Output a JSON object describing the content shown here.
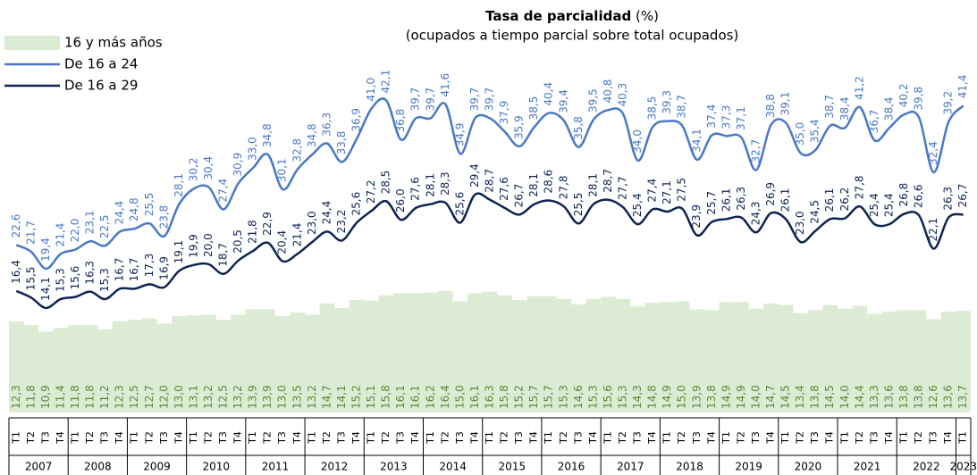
{
  "chart_data": {
    "type": "bar-line",
    "title": "Tasa de parcialidad",
    "title_unit": "(%)",
    "subtitle": "(ocupados a tiempo parcial sobre total ocupados)",
    "categories": [
      "T1",
      "T2",
      "T3",
      "T4",
      "T1",
      "T2",
      "T3",
      "T4",
      "T1",
      "T2",
      "T3",
      "T4",
      "T1",
      "T2",
      "T3",
      "T4",
      "T1",
      "T2",
      "T3",
      "T4",
      "T1",
      "T2",
      "T3",
      "T4",
      "T1",
      "T2",
      "T3",
      "T4",
      "T1",
      "T2",
      "T3",
      "T4",
      "T1",
      "T2",
      "T3",
      "T4",
      "T1",
      "T2",
      "T3",
      "T4",
      "T1",
      "T2",
      "T3",
      "T4",
      "T1",
      "T2",
      "T3",
      "T4",
      "T1",
      "T2",
      "T3",
      "T4",
      "T1",
      "T2",
      "T3",
      "T4",
      "T1",
      "T2",
      "T3",
      "T4",
      "T1",
      "T2",
      "T3",
      "T4",
      "T1"
    ],
    "years": [
      "2007",
      "2008",
      "2009",
      "2010",
      "2011",
      "2012",
      "2013",
      "2014",
      "2015",
      "2016",
      "2017",
      "2018",
      "2019",
      "2020",
      "2021",
      "2022",
      "2023"
    ],
    "ylim": [
      0,
      43
    ],
    "series": [
      {
        "name": "16 y más años",
        "kind": "bar",
        "color": "#dcebd3",
        "values": [
          12.3,
          11.8,
          10.9,
          11.4,
          11.8,
          11.8,
          11.2,
          12.3,
          12.5,
          12.7,
          12.0,
          13.0,
          13.1,
          13.2,
          12.5,
          13.2,
          13.9,
          13.9,
          13.0,
          13.5,
          13.2,
          14.7,
          14.1,
          15.2,
          15.1,
          15.8,
          16.1,
          16.1,
          16.2,
          16.4,
          15.0,
          16.1,
          16.3,
          15.8,
          15.2,
          15.7,
          15.7,
          15.3,
          14.6,
          15.3,
          15.6,
          15.3,
          14.3,
          14.8,
          14.9,
          15.0,
          13.9,
          13.8,
          14.9,
          14.9,
          14.0,
          14.7,
          14.5,
          13.4,
          13.8,
          14.5,
          14.0,
          14.4,
          13.3,
          13.6,
          13.8,
          13.8,
          12.6,
          13.6,
          13.7
        ],
        "value_labels": [
          "12,3",
          "11,8",
          "10,9",
          "11,4",
          "11,8",
          "11,8",
          "11,2",
          "12,3",
          "12,5",
          "12,7",
          "12,0",
          "13,0",
          "13,1",
          "13,2",
          "12,5",
          "13,2",
          "13,9",
          "13,9",
          "13,0",
          "13,5",
          "13,2",
          "14,7",
          "14,1",
          "15,2",
          "15,1",
          "15,8",
          "16,1",
          "16,1",
          "16,2",
          "16,4",
          "15,0",
          "16,1",
          "16,3",
          "15,8",
          "15,2",
          "15,7",
          "15,7",
          "15,3",
          "14,6",
          "15,3",
          "15,6",
          "15,3",
          "14,3",
          "14,8",
          "14,9",
          "15,0",
          "13,9",
          "13,8",
          "14,9",
          "14,9",
          "14,0",
          "14,7",
          "14,5",
          "13,4",
          "13,8",
          "14,5",
          "14,0",
          "14,4",
          "13,3",
          "13,6",
          "13,8",
          "13,8",
          "12,6",
          "13,6",
          "13,7"
        ]
      },
      {
        "name": "De 16 a 24",
        "kind": "line",
        "color": "#4a78c4",
        "values": [
          22.6,
          21.7,
          19.4,
          21.4,
          22.0,
          23.1,
          22.5,
          24.4,
          24.8,
          25.5,
          23.8,
          28.1,
          30.2,
          30.4,
          27.4,
          30.9,
          33.0,
          34.8,
          30.1,
          32.8,
          34.8,
          36.3,
          33.8,
          36.9,
          41.0,
          42.1,
          36.8,
          39.7,
          39.7,
          41.6,
          34.9,
          39.7,
          39.7,
          37.9,
          35.9,
          38.5,
          40.4,
          39.4,
          35.8,
          39.5,
          40.8,
          40.3,
          34.0,
          38.5,
          39.3,
          38.7,
          34.1,
          37.4,
          37.3,
          37.1,
          32.7,
          38.8,
          39.1,
          35.0,
          35.4,
          38.7,
          38.4,
          41.2,
          36.7,
          38.4,
          40.2,
          39.8,
          32.4,
          39.2,
          41.4
        ],
        "value_labels": [
          "22,6",
          "21,7",
          "19,4",
          "21,4",
          "22,0",
          "23,1",
          "22,5",
          "24,4",
          "24,8",
          "25,5",
          "23,8",
          "28,1",
          "30,2",
          "30,4",
          "27,4",
          "30,9",
          "33,0",
          "34,8",
          "30,1",
          "32,8",
          "34,8",
          "36,3",
          "33,8",
          "36,9",
          "41,0",
          "42,1",
          "36,8",
          "39,7",
          "39,7",
          "41,6",
          "34,9",
          "39,7",
          "39,7",
          "37,9",
          "35,9",
          "38,5",
          "40,4",
          "39,4",
          "35,8",
          "39,5",
          "40,8",
          "40,3",
          "34,0",
          "38,5",
          "39,3",
          "38,7",
          "34,1",
          "37,4",
          "37,3",
          "37,1",
          "32,7",
          "38,8",
          "39,1",
          "35,0",
          "35,4",
          "38,7",
          "38,4",
          "41,2",
          "36,7",
          "38,4",
          "40,2",
          "39,8",
          "32,4",
          "39,2",
          "41,4"
        ]
      },
      {
        "name": "De 16 a 29",
        "kind": "line",
        "color": "#0e2452",
        "values": [
          16.4,
          15.5,
          14.1,
          15.3,
          15.6,
          16.3,
          15.3,
          16.7,
          16.7,
          17.3,
          16.9,
          19.1,
          19.9,
          20.0,
          18.7,
          20.5,
          21.8,
          22.9,
          20.4,
          21.4,
          23.0,
          24.4,
          23.2,
          25.6,
          27.2,
          28.5,
          26.0,
          27.6,
          28.1,
          28.3,
          25.6,
          29.4,
          28.7,
          27.6,
          26.7,
          28.1,
          28.6,
          27.8,
          25.5,
          28.1,
          28.7,
          27.7,
          25.4,
          27.4,
          27.1,
          27.5,
          23.9,
          25.7,
          26.1,
          26.3,
          24.3,
          26.9,
          26.1,
          23.0,
          24.5,
          26.1,
          26.2,
          27.8,
          25.4,
          25.4,
          26.8,
          26.6,
          22.1,
          26.3,
          26.7
        ],
        "value_labels": [
          "16,4",
          "15,5",
          "14,1",
          "15,3",
          "15,6",
          "16,3",
          "15,3",
          "16,7",
          "16,7",
          "17,3",
          "16,9",
          "19,1",
          "19,9",
          "20,0",
          "18,7",
          "20,5",
          "21,8",
          "22,9",
          "20,4",
          "21,4",
          "23,0",
          "24,4",
          "23,2",
          "25,6",
          "27,2",
          "28,5",
          "26,0",
          "27,6",
          "28,1",
          "28,3",
          "25,6",
          "29,4",
          "28,7",
          "27,6",
          "26,7",
          "28,1",
          "28,6",
          "27,8",
          "25,5",
          "28,1",
          "28,7",
          "27,7",
          "25,4",
          "27,4",
          "27,1",
          "27,5",
          "23,9",
          "25,7",
          "26,1",
          "26,3",
          "24,3",
          "26,9",
          "26,1",
          "23,0",
          "24,5",
          "26,1",
          "26,2",
          "27,8",
          "25,4",
          "25,4",
          "26,8",
          "26,6",
          "22,1",
          "26,3",
          "26,7"
        ]
      }
    ]
  }
}
